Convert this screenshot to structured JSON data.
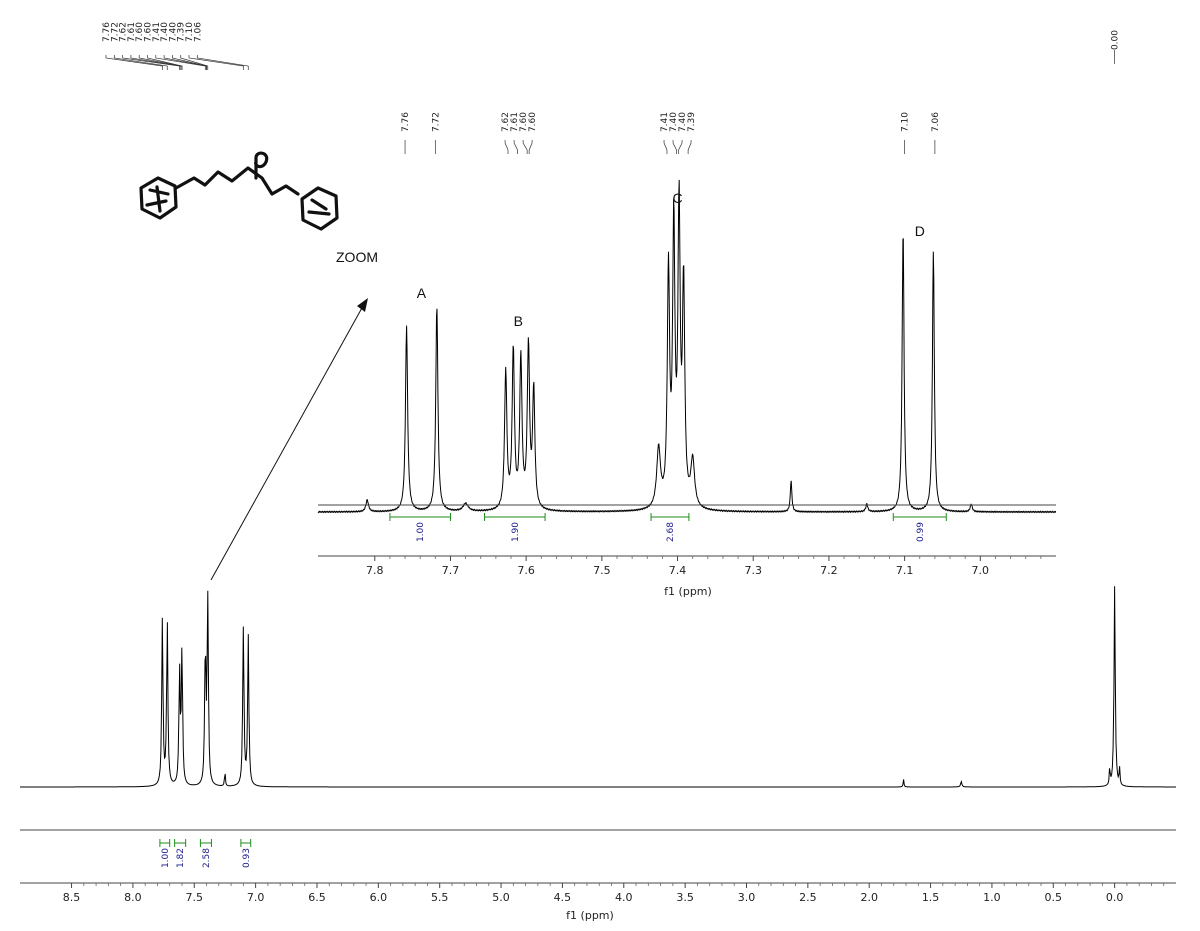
{
  "chart_data": [
    {
      "type": "line",
      "name": "main-spectrum",
      "xlabel": "f1 (ppm)",
      "x_reversed": true,
      "xlim": [
        8.92,
        -0.5
      ],
      "ticks": [
        "8.5",
        "8.0",
        "7.5",
        "7.0",
        "6.5",
        "6.0",
        "5.5",
        "5.0",
        "4.5",
        "4.0",
        "3.5",
        "3.0",
        "2.5",
        "2.0",
        "1.5",
        "1.0",
        "0.5",
        "0.0"
      ],
      "peaks": [
        {
          "ppm": 7.76,
          "height": 0.87,
          "width": 0.006
        },
        {
          "ppm": 7.72,
          "height": 0.87,
          "width": 0.006
        },
        {
          "ppm": 7.62,
          "height": 0.6,
          "width": 0.006
        },
        {
          "ppm": 7.6,
          "height": 0.7,
          "width": 0.006
        },
        {
          "ppm": 7.41,
          "height": 0.73,
          "width": 0.006
        },
        {
          "ppm": 7.39,
          "height": 0.99,
          "width": 0.006
        },
        {
          "ppm": 7.25,
          "height": 0.08,
          "width": 0.004
        },
        {
          "ppm": 7.1,
          "height": 0.84,
          "width": 0.006
        },
        {
          "ppm": 7.06,
          "height": 0.79,
          "width": 0.006
        },
        {
          "ppm": 1.72,
          "height": 0.04,
          "width": 0.004
        },
        {
          "ppm": 1.25,
          "height": 0.03,
          "width": 0.006
        },
        {
          "ppm": 0.0,
          "height": 1.06,
          "width": 0.006
        },
        {
          "ppm": 0.04,
          "height": 0.09,
          "width": 0.004
        },
        {
          "ppm": -0.04,
          "height": 0.09,
          "width": 0.004
        }
      ],
      "peak_labels": [
        "7.76",
        "7.72",
        "7.62",
        "7.61",
        "7.60",
        "7.60",
        "7.41",
        "7.40",
        "7.40",
        "7.39",
        "7.10",
        "7.06"
      ],
      "tms_label": "0.00",
      "integrals": [
        {
          "from": 7.78,
          "to": 7.7,
          "value": "1.00"
        },
        {
          "from": 7.66,
          "to": 7.57,
          "value": "1.82"
        },
        {
          "from": 7.45,
          "to": 7.36,
          "value": "2.58"
        },
        {
          "from": 7.12,
          "to": 7.04,
          "value": "0.93"
        }
      ]
    },
    {
      "type": "line",
      "name": "zoom-inset",
      "xlabel": "f1 (ppm)",
      "x_reversed": true,
      "xlim": [
        7.875,
        6.9
      ],
      "ticks": [
        "7.8",
        "7.7",
        "7.6",
        "7.5",
        "7.4",
        "7.3",
        "7.2",
        "7.1",
        "7.0"
      ],
      "peaks": [
        {
          "ppm": 7.81,
          "height": 0.03,
          "width": 0.002
        },
        {
          "ppm": 7.758,
          "height": 0.47,
          "width": 0.0017
        },
        {
          "ppm": 7.718,
          "height": 0.52,
          "width": 0.0017
        },
        {
          "ppm": 7.68,
          "height": 0.02,
          "width": 0.004
        },
        {
          "ppm": 7.627,
          "height": 0.35,
          "width": 0.0018
        },
        {
          "ppm": 7.617,
          "height": 0.4,
          "width": 0.0018
        },
        {
          "ppm": 7.607,
          "height": 0.38,
          "width": 0.0018
        },
        {
          "ppm": 7.597,
          "height": 0.41,
          "width": 0.0018
        },
        {
          "ppm": 7.59,
          "height": 0.3,
          "width": 0.0018
        },
        {
          "ppm": 7.425,
          "height": 0.15,
          "width": 0.003
        },
        {
          "ppm": 7.412,
          "height": 0.59,
          "width": 0.0018
        },
        {
          "ppm": 7.405,
          "height": 0.7,
          "width": 0.0018
        },
        {
          "ppm": 7.398,
          "height": 0.74,
          "width": 0.0018
        },
        {
          "ppm": 7.392,
          "height": 0.55,
          "width": 0.0018
        },
        {
          "ppm": 7.38,
          "height": 0.12,
          "width": 0.003
        },
        {
          "ppm": 7.25,
          "height": 0.08,
          "width": 0.0012
        },
        {
          "ppm": 7.15,
          "height": 0.02,
          "width": 0.0015
        },
        {
          "ppm": 7.102,
          "height": 0.72,
          "width": 0.0015
        },
        {
          "ppm": 7.062,
          "height": 0.66,
          "width": 0.0015
        },
        {
          "ppm": 7.012,
          "height": 0.02,
          "width": 0.0015
        }
      ],
      "peak_labels": [
        {
          "ppm": 7.76,
          "label": "7.76"
        },
        {
          "ppm": 7.72,
          "label": "7.72"
        },
        {
          "ppm": 7.62,
          "label": "7.62"
        },
        {
          "ppm": 7.61,
          "label": "7.61"
        },
        {
          "ppm": 7.6,
          "label": "7.60"
        },
        {
          "ppm": 7.6,
          "label": "7.60"
        },
        {
          "ppm": 7.41,
          "label": "7.41"
        },
        {
          "ppm": 7.4,
          "label": "7.40"
        },
        {
          "ppm": 7.4,
          "label": "7.40"
        },
        {
          "ppm": 7.39,
          "label": "7.39"
        },
        {
          "ppm": 7.1,
          "label": "7.10"
        },
        {
          "ppm": 7.06,
          "label": "7.06"
        }
      ],
      "integrals": [
        {
          "from": 7.78,
          "to": 7.7,
          "value": "1.00"
        },
        {
          "from": 7.655,
          "to": 7.575,
          "value": "1.90"
        },
        {
          "from": 7.435,
          "to": 7.385,
          "value": "2.68"
        },
        {
          "from": 7.115,
          "to": 7.045,
          "value": "0.99"
        }
      ],
      "annotations": [
        {
          "text": "A",
          "ppm": 7.738
        },
        {
          "text": "B",
          "ppm": 7.61
        },
        {
          "text": "C",
          "ppm": 7.4
        },
        {
          "text": "D",
          "ppm": 7.08
        }
      ]
    }
  ],
  "zoom_label": "ZOOM"
}
